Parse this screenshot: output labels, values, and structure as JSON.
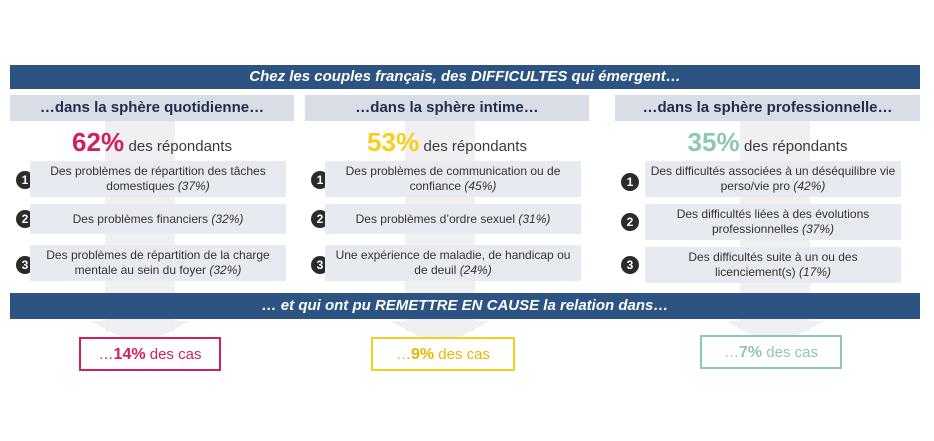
{
  "top_banner": "Chez les couples français, des DIFFICULTES qui émergent…",
  "mid_banner": "… et qui ont pu REMETTRE EN CAUSE la relation dans…",
  "pct_suffix": "des répondants",
  "colors": {
    "banner": "#2d5382",
    "pink": "#d01f5f",
    "yellow": "#f5cf1d",
    "teal": "#8fc7b7"
  },
  "columns": [
    {
      "header": "…dans la sphère quotidienne…",
      "pct": "62%",
      "items": [
        {
          "num": "1",
          "text": "Des problèmes de répartition des tâches domestiques",
          "detail": "(37%)"
        },
        {
          "num": "2",
          "text": "Des problèmes financiers",
          "detail": "(32%)"
        },
        {
          "num": "3",
          "text": "Des problèmes de répartition de la charge mentale au sein du foyer",
          "detail": "(32%)"
        }
      ],
      "result_prefix": "…",
      "result_value": "14%",
      "result_suffix": "des cas"
    },
    {
      "header": "…dans la sphère intime…",
      "pct": "53%",
      "items": [
        {
          "num": "1",
          "text": "Des problèmes de communication ou de confiance",
          "detail": "(45%)"
        },
        {
          "num": "2",
          "text": "Des problèmes d’ordre sexuel",
          "detail": "(31%)"
        },
        {
          "num": "3",
          "text": "Une expérience de maladie, de handicap ou de deuil",
          "detail": "(24%)"
        }
      ],
      "result_prefix": "…",
      "result_value": "9%",
      "result_suffix": "des cas"
    },
    {
      "header": "…dans la sphère professionnelle…",
      "pct": "35%",
      "items": [
        {
          "num": "1",
          "text": "Des difficultés associées à un déséquilibre vie perso/vie pro",
          "detail": "(42%)"
        },
        {
          "num": "2",
          "text": "Des difficultés liées à des évolutions professionnelles",
          "detail": "(37%)"
        },
        {
          "num": "3",
          "text": "Des difficultés suite à un ou des licenciement(s)",
          "detail": "(17%)"
        }
      ],
      "result_prefix": "…",
      "result_value": "7%",
      "result_suffix": "des cas"
    }
  ]
}
